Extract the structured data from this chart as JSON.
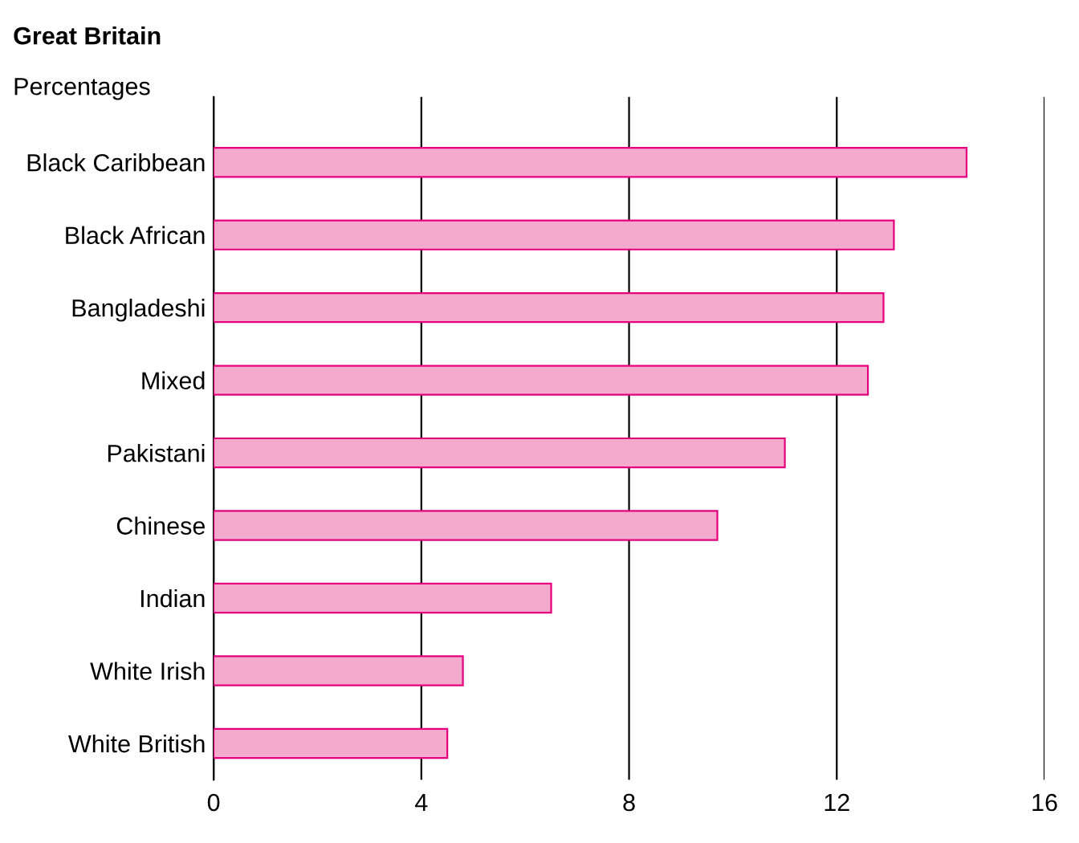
{
  "chart_data": {
    "type": "bar",
    "orientation": "horizontal",
    "title": "Great Britain",
    "subtitle": "Percentages",
    "categories": [
      "Black Caribbean",
      "Black African",
      "Bangladeshi",
      "Mixed",
      "Pakistani",
      "Chinese",
      "Indian",
      "White Irish",
      "White British"
    ],
    "values": [
      14.5,
      13.1,
      12.9,
      12.6,
      11.0,
      9.7,
      6.5,
      4.8,
      4.5
    ],
    "color": "#f4aacd",
    "xlim": [
      0,
      16
    ],
    "xticks": [
      0,
      4,
      8,
      12,
      16
    ],
    "grid": "x",
    "legend": false
  }
}
